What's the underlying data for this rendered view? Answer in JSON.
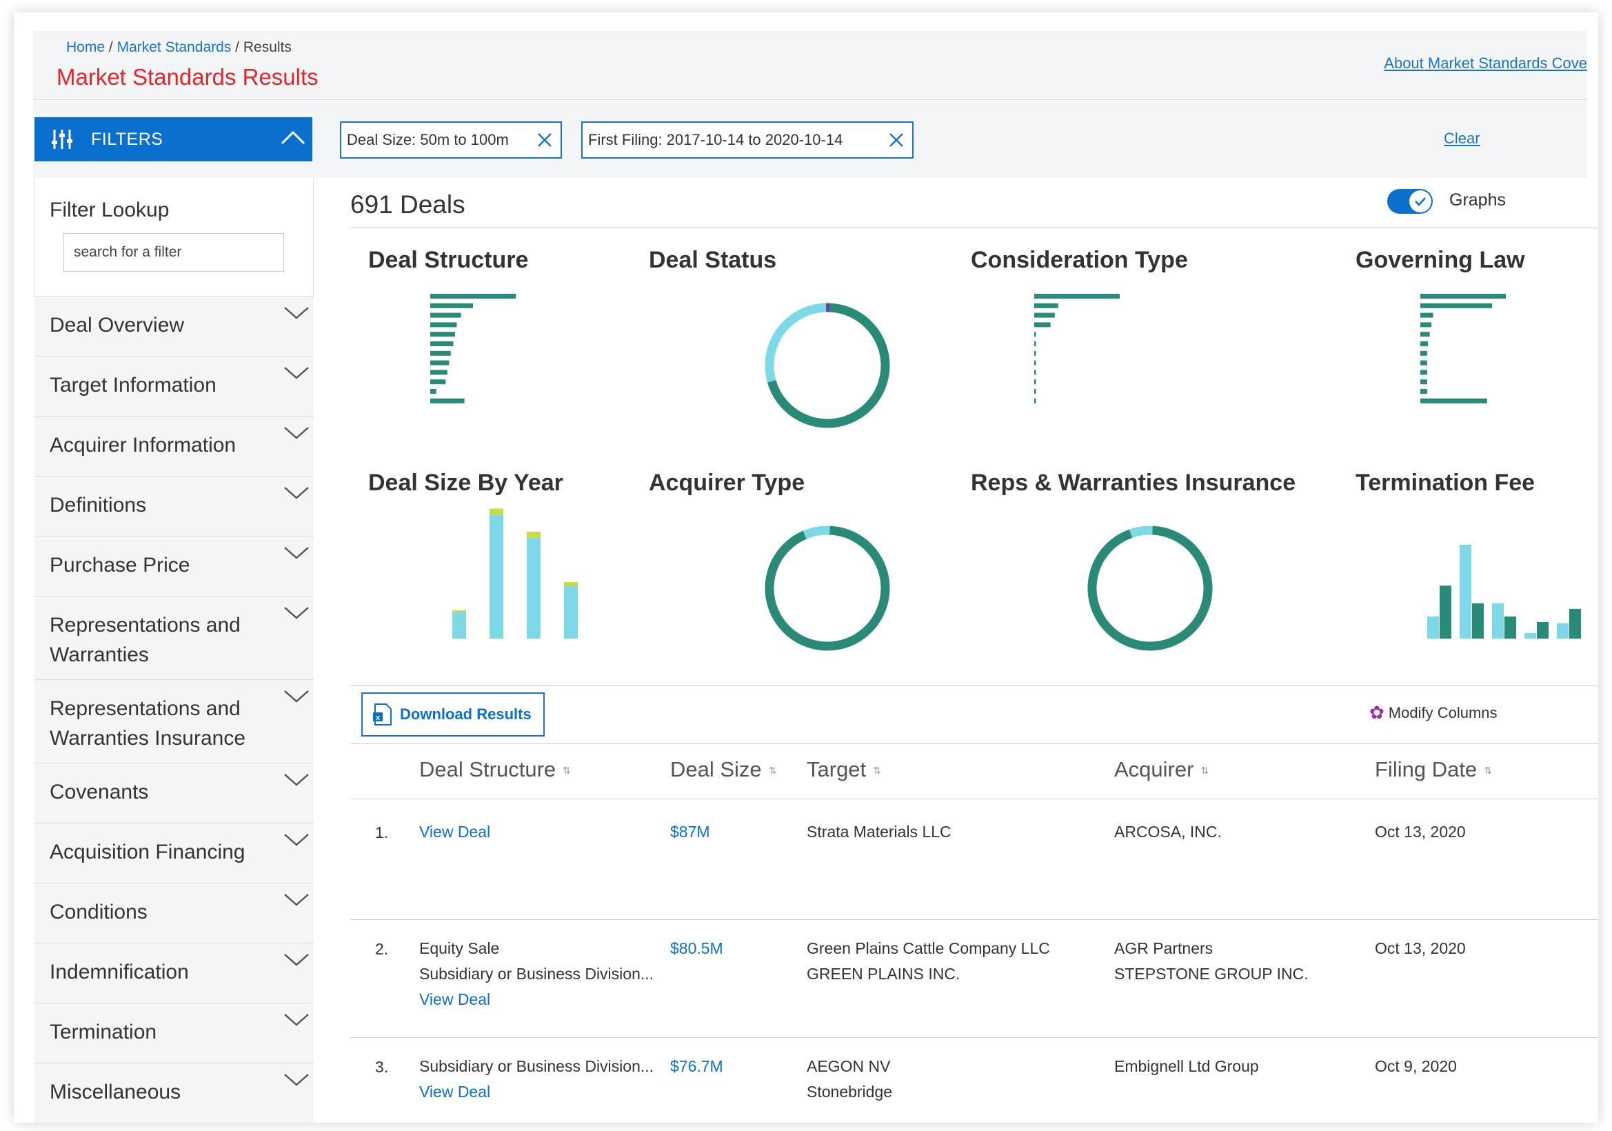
{
  "breadcrumb": {
    "home": "Home",
    "sep1": "/",
    "market_standards": "Market Standards",
    "sep2": "/",
    "results": "Results"
  },
  "header": {
    "title": "Market Standards Results",
    "about_link": "About Market Standards Cove"
  },
  "filters": {
    "toggle_label": "FILTERS",
    "chips": [
      "Deal Size: 50m to 100m",
      "First Filing: 2017-10-14 to 2020-10-14"
    ],
    "clear_label": "Clear"
  },
  "sidebar": {
    "lookup_label": "Filter Lookup",
    "lookup_placeholder": "search for a filter",
    "items": [
      {
        "label": "Deal Overview"
      },
      {
        "label": "Target Information"
      },
      {
        "label": "Acquirer Information"
      },
      {
        "label": "Definitions"
      },
      {
        "label": "Purchase Price"
      },
      {
        "label": "Representations and",
        "label2": "Warranties"
      },
      {
        "label": "Representations and",
        "label2": "Warranties Insurance"
      },
      {
        "label": "Covenants"
      },
      {
        "label": "Acquisition Financing"
      },
      {
        "label": "Conditions"
      },
      {
        "label": "Indemnification"
      },
      {
        "label": "Termination"
      },
      {
        "label": "Miscellaneous"
      }
    ]
  },
  "results": {
    "count_label": "691 Deals",
    "graphs_label": "Graphs",
    "graphs_on": true
  },
  "colors": {
    "teal": "#2a8a78",
    "light_teal": "#7dd9e8",
    "yellow_green": "#c8dc4a",
    "purple": "#6a3fa0",
    "blue": "#0b6fce",
    "red": "#e8232a"
  },
  "chart_data": [
    {
      "type": "bar",
      "title": "Deal Structure",
      "orientation": "horizontal",
      "values": [
        100,
        50,
        36,
        31,
        29,
        27,
        24,
        22,
        20,
        18,
        7,
        40
      ]
    },
    {
      "type": "pie",
      "title": "Deal Status",
      "donut": true,
      "values": [
        70,
        29,
        1
      ]
    },
    {
      "type": "bar",
      "title": "Consideration Type",
      "orientation": "horizontal",
      "values": [
        100,
        28,
        24,
        19,
        2,
        2,
        2,
        2,
        2,
        2,
        2,
        2
      ]
    },
    {
      "type": "bar",
      "title": "Governing Law",
      "orientation": "horizontal",
      "values": [
        100,
        84,
        15,
        13,
        11,
        9,
        8,
        8,
        8,
        8,
        8,
        78
      ]
    },
    {
      "type": "bar",
      "title": "Deal Size By Year",
      "stacked": true,
      "series": [
        {
          "values": [
            25,
            118,
            96,
            50
          ]
        },
        {
          "values": [
            2,
            6,
            6,
            4
          ]
        }
      ]
    },
    {
      "type": "pie",
      "title": "Acquirer Type",
      "donut": true,
      "values": [
        93,
        7
      ]
    },
    {
      "type": "pie",
      "title": "Reps & Warranties Insurance",
      "donut": true,
      "values": [
        94,
        6
      ]
    },
    {
      "type": "bar",
      "title": "Termination Fee",
      "grouped": true,
      "series": [
        {
          "values": [
            20,
            85,
            32,
            5,
            14
          ]
        },
        {
          "values": [
            48,
            32,
            20,
            15,
            27
          ]
        }
      ]
    }
  ],
  "actions": {
    "download_label": "Download Results",
    "modify_columns_label": "Modify Columns"
  },
  "table": {
    "headers": [
      "Deal Structure",
      "Deal Size",
      "Target",
      "Acquirer",
      "Filing Date"
    ],
    "rows": [
      {
        "num": "1.",
        "structure": [],
        "view_deal": "View Deal",
        "size": "$87M",
        "target": [
          "Strata Materials LLC"
        ],
        "acquirer": [
          "ARCOSA, INC."
        ],
        "date": "Oct 13, 2020"
      },
      {
        "num": "2.",
        "structure": [
          "Equity Sale",
          "Subsidiary or Business Division..."
        ],
        "view_deal": "View Deal",
        "size": "$80.5M",
        "target": [
          "Green Plains Cattle Company LLC",
          "GREEN PLAINS INC."
        ],
        "acquirer": [
          "AGR Partners",
          "STEPSTONE GROUP INC."
        ],
        "date": "Oct 13, 2020"
      },
      {
        "num": "3.",
        "structure": [
          "Subsidiary or Business Division..."
        ],
        "view_deal": "View Deal",
        "size": "$76.7M",
        "target": [
          "AEGON NV",
          "Stonebridge"
        ],
        "acquirer": [
          "Embignell Ltd Group"
        ],
        "date": "Oct 9, 2020"
      }
    ]
  }
}
